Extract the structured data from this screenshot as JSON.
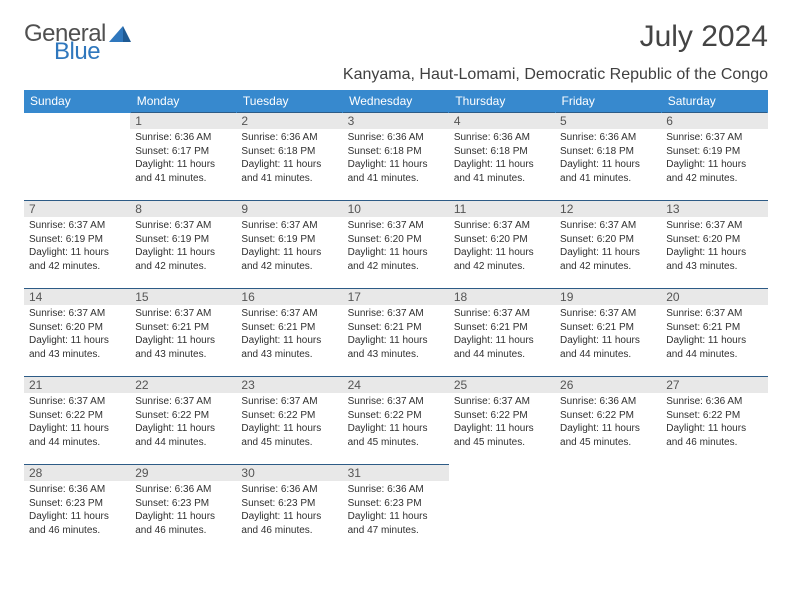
{
  "logo": {
    "text1": "General",
    "text2": "Blue"
  },
  "title": "July 2024",
  "location": "Kanyama, Haut-Lomami, Democratic Republic of the Congo",
  "colors": {
    "header_bg": "#3789ce",
    "header_text": "#ffffff",
    "daynum_bg": "#e8e8e8",
    "row_border": "#2d5b86",
    "logo_grey": "#505050",
    "logo_blue": "#2f77bd"
  },
  "weekdays": [
    "Sunday",
    "Monday",
    "Tuesday",
    "Wednesday",
    "Thursday",
    "Friday",
    "Saturday"
  ],
  "weeks": [
    [
      null,
      {
        "n": "1",
        "sr": "6:36 AM",
        "ss": "6:17 PM",
        "dl": "11 hours and 41 minutes."
      },
      {
        "n": "2",
        "sr": "6:36 AM",
        "ss": "6:18 PM",
        "dl": "11 hours and 41 minutes."
      },
      {
        "n": "3",
        "sr": "6:36 AM",
        "ss": "6:18 PM",
        "dl": "11 hours and 41 minutes."
      },
      {
        "n": "4",
        "sr": "6:36 AM",
        "ss": "6:18 PM",
        "dl": "11 hours and 41 minutes."
      },
      {
        "n": "5",
        "sr": "6:36 AM",
        "ss": "6:18 PM",
        "dl": "11 hours and 41 minutes."
      },
      {
        "n": "6",
        "sr": "6:37 AM",
        "ss": "6:19 PM",
        "dl": "11 hours and 42 minutes."
      }
    ],
    [
      {
        "n": "7",
        "sr": "6:37 AM",
        "ss": "6:19 PM",
        "dl": "11 hours and 42 minutes."
      },
      {
        "n": "8",
        "sr": "6:37 AM",
        "ss": "6:19 PM",
        "dl": "11 hours and 42 minutes."
      },
      {
        "n": "9",
        "sr": "6:37 AM",
        "ss": "6:19 PM",
        "dl": "11 hours and 42 minutes."
      },
      {
        "n": "10",
        "sr": "6:37 AM",
        "ss": "6:20 PM",
        "dl": "11 hours and 42 minutes."
      },
      {
        "n": "11",
        "sr": "6:37 AM",
        "ss": "6:20 PM",
        "dl": "11 hours and 42 minutes."
      },
      {
        "n": "12",
        "sr": "6:37 AM",
        "ss": "6:20 PM",
        "dl": "11 hours and 42 minutes."
      },
      {
        "n": "13",
        "sr": "6:37 AM",
        "ss": "6:20 PM",
        "dl": "11 hours and 43 minutes."
      }
    ],
    [
      {
        "n": "14",
        "sr": "6:37 AM",
        "ss": "6:20 PM",
        "dl": "11 hours and 43 minutes."
      },
      {
        "n": "15",
        "sr": "6:37 AM",
        "ss": "6:21 PM",
        "dl": "11 hours and 43 minutes."
      },
      {
        "n": "16",
        "sr": "6:37 AM",
        "ss": "6:21 PM",
        "dl": "11 hours and 43 minutes."
      },
      {
        "n": "17",
        "sr": "6:37 AM",
        "ss": "6:21 PM",
        "dl": "11 hours and 43 minutes."
      },
      {
        "n": "18",
        "sr": "6:37 AM",
        "ss": "6:21 PM",
        "dl": "11 hours and 44 minutes."
      },
      {
        "n": "19",
        "sr": "6:37 AM",
        "ss": "6:21 PM",
        "dl": "11 hours and 44 minutes."
      },
      {
        "n": "20",
        "sr": "6:37 AM",
        "ss": "6:21 PM",
        "dl": "11 hours and 44 minutes."
      }
    ],
    [
      {
        "n": "21",
        "sr": "6:37 AM",
        "ss": "6:22 PM",
        "dl": "11 hours and 44 minutes."
      },
      {
        "n": "22",
        "sr": "6:37 AM",
        "ss": "6:22 PM",
        "dl": "11 hours and 44 minutes."
      },
      {
        "n": "23",
        "sr": "6:37 AM",
        "ss": "6:22 PM",
        "dl": "11 hours and 45 minutes."
      },
      {
        "n": "24",
        "sr": "6:37 AM",
        "ss": "6:22 PM",
        "dl": "11 hours and 45 minutes."
      },
      {
        "n": "25",
        "sr": "6:37 AM",
        "ss": "6:22 PM",
        "dl": "11 hours and 45 minutes."
      },
      {
        "n": "26",
        "sr": "6:36 AM",
        "ss": "6:22 PM",
        "dl": "11 hours and 45 minutes."
      },
      {
        "n": "27",
        "sr": "6:36 AM",
        "ss": "6:22 PM",
        "dl": "11 hours and 46 minutes."
      }
    ],
    [
      {
        "n": "28",
        "sr": "6:36 AM",
        "ss": "6:23 PM",
        "dl": "11 hours and 46 minutes."
      },
      {
        "n": "29",
        "sr": "6:36 AM",
        "ss": "6:23 PM",
        "dl": "11 hours and 46 minutes."
      },
      {
        "n": "30",
        "sr": "6:36 AM",
        "ss": "6:23 PM",
        "dl": "11 hours and 46 minutes."
      },
      {
        "n": "31",
        "sr": "6:36 AM",
        "ss": "6:23 PM",
        "dl": "11 hours and 47 minutes."
      },
      null,
      null,
      null
    ]
  ],
  "labels": {
    "sunrise": "Sunrise:",
    "sunset": "Sunset:",
    "daylight": "Daylight:"
  }
}
